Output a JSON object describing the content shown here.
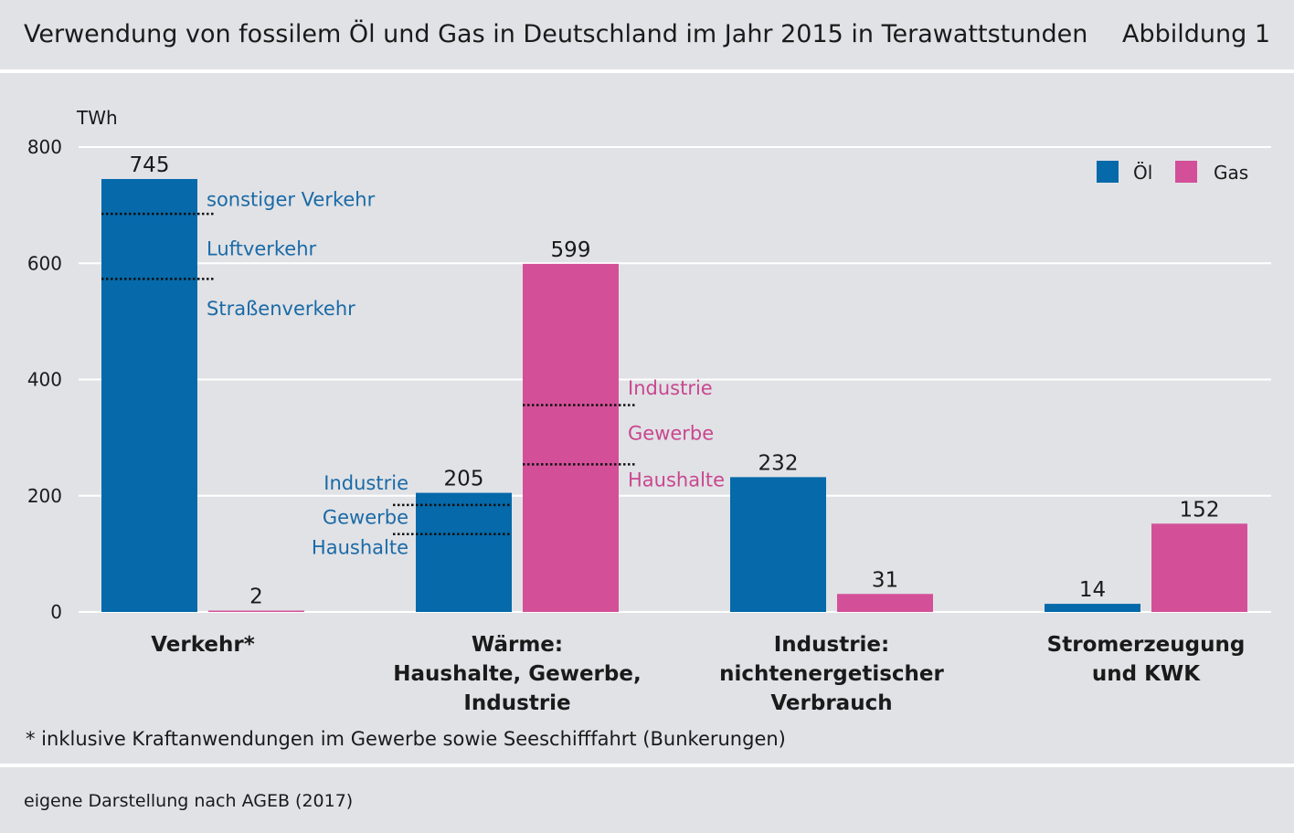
{
  "header": {
    "title": "Verwendung von fossilem Öl und Gas in Deutschland im Jahr 2015 in Terawattstunden",
    "figure_label": "Abbildung 1"
  },
  "footer": {
    "source": "eigene Darstellung nach AGEB (2017)"
  },
  "colors": {
    "oil": "#0569aa",
    "gas": "#d35098",
    "oil_text": "#1a6aa6",
    "gas_text": "#c9478f",
    "background": "#e1e2e6",
    "grid": "#ffffff"
  },
  "chart_data": {
    "type": "bar",
    "title": "",
    "xlabel": "",
    "ylabel": "TWh",
    "ylim": [
      0,
      800
    ],
    "yticks": [
      "0",
      "200",
      "400",
      "600",
      "800"
    ],
    "grid": true,
    "legend_position": "top-right",
    "categories": [
      [
        "Verkehr*"
      ],
      [
        "Wärme:",
        "Haushalte, Gewerbe,",
        "Industrie"
      ],
      [
        "Industrie:",
        "nichtenergetischer",
        "Verbrauch"
      ],
      [
        "Stromerzeugung",
        "und KWK"
      ]
    ],
    "series": [
      {
        "name": "Öl",
        "values": [
          745,
          205,
          232,
          14
        ],
        "labels": [
          "745",
          "205",
          "232",
          "14"
        ]
      },
      {
        "name": "Gas",
        "values": [
          2,
          599,
          31,
          152
        ],
        "labels": [
          "2",
          "599",
          "31",
          "152"
        ]
      }
    ],
    "breakdowns": [
      {
        "category": 0,
        "series": 0,
        "label_side": "right",
        "dividers": [
          685,
          573
        ],
        "labels": [
          "sonstiger Verkehr",
          "Luftverkehr",
          "Straßenverkehr"
        ],
        "label_values": [
          710,
          625,
          522
        ]
      },
      {
        "category": 1,
        "series": 0,
        "label_side": "left",
        "dividers": [
          184,
          134
        ],
        "labels": [
          "Industrie",
          "Gewerbe",
          "Haushalte"
        ],
        "label_values": [
          222,
          163,
          111
        ]
      },
      {
        "category": 1,
        "series": 1,
        "label_side": "right",
        "dividers": [
          356,
          254
        ],
        "labels": [
          "Industrie",
          "Gewerbe",
          "Haushalte"
        ],
        "label_values": [
          385,
          307,
          227
        ]
      }
    ],
    "footnote": "* inklusive Kraftanwendungen im Gewerbe sowie Seeschifffahrt (Bunkerungen)"
  }
}
